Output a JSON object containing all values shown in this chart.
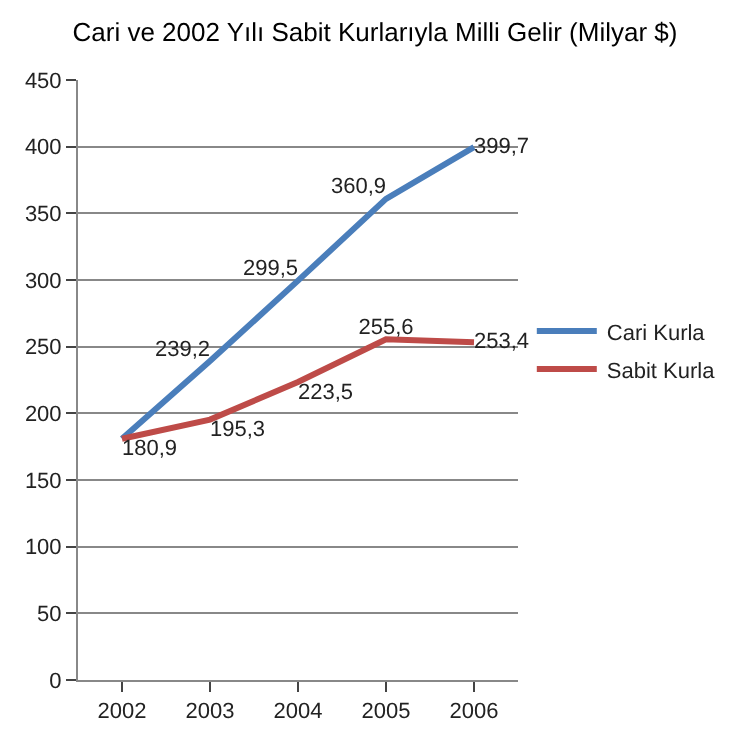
{
  "chart_data": {
    "type": "line",
    "title": "Cari ve 2002 Yılı Sabit Kurlarıyla Milli Gelir (Milyar $)",
    "categories": [
      "2002",
      "2003",
      "2004",
      "2005",
      "2006"
    ],
    "series": [
      {
        "name": "Cari Kurla",
        "color": "#4a7ebb",
        "values": [
          180.9,
          239.2,
          299.5,
          360.9,
          399.7
        ],
        "value_labels": [
          null,
          "239,2",
          "299,5",
          "360,9",
          "399,7"
        ]
      },
      {
        "name": "Sabit Kurla",
        "color": "#be4b48",
        "values": [
          180.9,
          195.3,
          223.5,
          255.6,
          253.4
        ],
        "value_labels": [
          "180,9",
          "195,3",
          "223,5",
          "255,6",
          "253,4"
        ]
      }
    ],
    "ylim": [
      0,
      450
    ],
    "yticks": [
      0,
      50,
      100,
      150,
      200,
      250,
      300,
      350,
      400,
      450
    ],
    "grid": "y",
    "legend": "right",
    "marker": "none",
    "line_style": "solid"
  }
}
